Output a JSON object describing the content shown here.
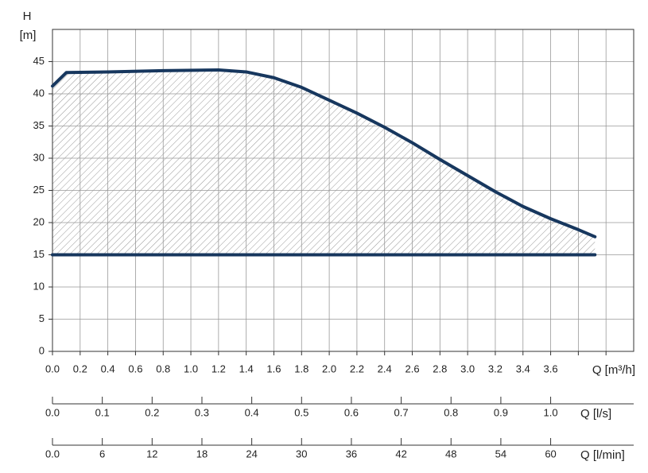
{
  "chart_data": {
    "type": "line",
    "y_label": "H",
    "y_unit": "[m]",
    "x_label": "Q [m³/h]",
    "xlim": [
      0,
      4.2
    ],
    "ylim": [
      0,
      50
    ],
    "xticks": [
      {
        "value": 0,
        "label": "0.0"
      },
      {
        "value": 0.2,
        "label": "0.2"
      },
      {
        "value": 0.4,
        "label": "0.4"
      },
      {
        "value": 0.6,
        "label": "0.6"
      },
      {
        "value": 0.8,
        "label": "0.8"
      },
      {
        "value": 1,
        "label": "1.0"
      },
      {
        "value": 1.2,
        "label": "1.2"
      },
      {
        "value": 1.4,
        "label": "1.4"
      },
      {
        "value": 1.6,
        "label": "1.6"
      },
      {
        "value": 1.8,
        "label": "1.8"
      },
      {
        "value": 2,
        "label": "2.0"
      },
      {
        "value": 2.2,
        "label": "2.2"
      },
      {
        "value": 2.4,
        "label": "2.4"
      },
      {
        "value": 2.6,
        "label": "2.6"
      },
      {
        "value": 2.8,
        "label": "2.8"
      },
      {
        "value": 3,
        "label": "3.0"
      },
      {
        "value": 3.2,
        "label": "3.2"
      },
      {
        "value": 3.4,
        "label": "3.4"
      },
      {
        "value": 3.6,
        "label": "3.6"
      },
      {
        "value": 3.8,
        "label": null
      },
      {
        "value": 4,
        "label": null
      }
    ],
    "yticks": [
      0,
      5,
      10,
      15,
      20,
      25,
      30,
      35,
      40,
      45
    ],
    "grid": true,
    "fill_between": true,
    "series": [
      {
        "color": "#17375e",
        "x": [
          0,
          0.1,
          0.4,
          0.8,
          1.2,
          1.4,
          1.6,
          1.8,
          2.0,
          2.2,
          2.4,
          2.6,
          2.8,
          3.0,
          3.2,
          3.4,
          3.6,
          3.8,
          3.92
        ],
        "values": [
          41.2,
          43.3,
          43.4,
          43.6,
          43.7,
          43.4,
          42.5,
          41,
          39,
          37,
          34.8,
          32.4,
          29.8,
          27.3,
          24.8,
          22.5,
          20.6,
          18.9,
          17.8
        ]
      },
      {
        "color": "#17375e",
        "x": [
          0,
          3.92
        ],
        "values": [
          15,
          15
        ]
      }
    ],
    "secondary_axes": [
      {
        "label": "Q [l/s]",
        "xlim": [
          0,
          1.16667
        ],
        "xticks": [
          {
            "value": 0,
            "label": "0.0"
          },
          {
            "value": 0.1,
            "label": "0.1"
          },
          {
            "value": 0.2,
            "label": "0.2"
          },
          {
            "value": 0.3,
            "label": "0.3"
          },
          {
            "value": 0.4,
            "label": "0.4"
          },
          {
            "value": 0.5,
            "label": "0.5"
          },
          {
            "value": 0.6,
            "label": "0.6"
          },
          {
            "value": 0.7,
            "label": "0.7"
          },
          {
            "value": 0.8,
            "label": "0.8"
          },
          {
            "value": 0.9,
            "label": "0.9"
          },
          {
            "value": 1,
            "label": "1.0"
          }
        ]
      },
      {
        "label": "Q [l/min]",
        "xlim": [
          0,
          70
        ],
        "xticks": [
          {
            "value": 0,
            "label": "0.0"
          },
          6,
          12,
          18,
          24,
          30,
          36,
          42,
          48,
          54,
          60
        ]
      }
    ]
  }
}
